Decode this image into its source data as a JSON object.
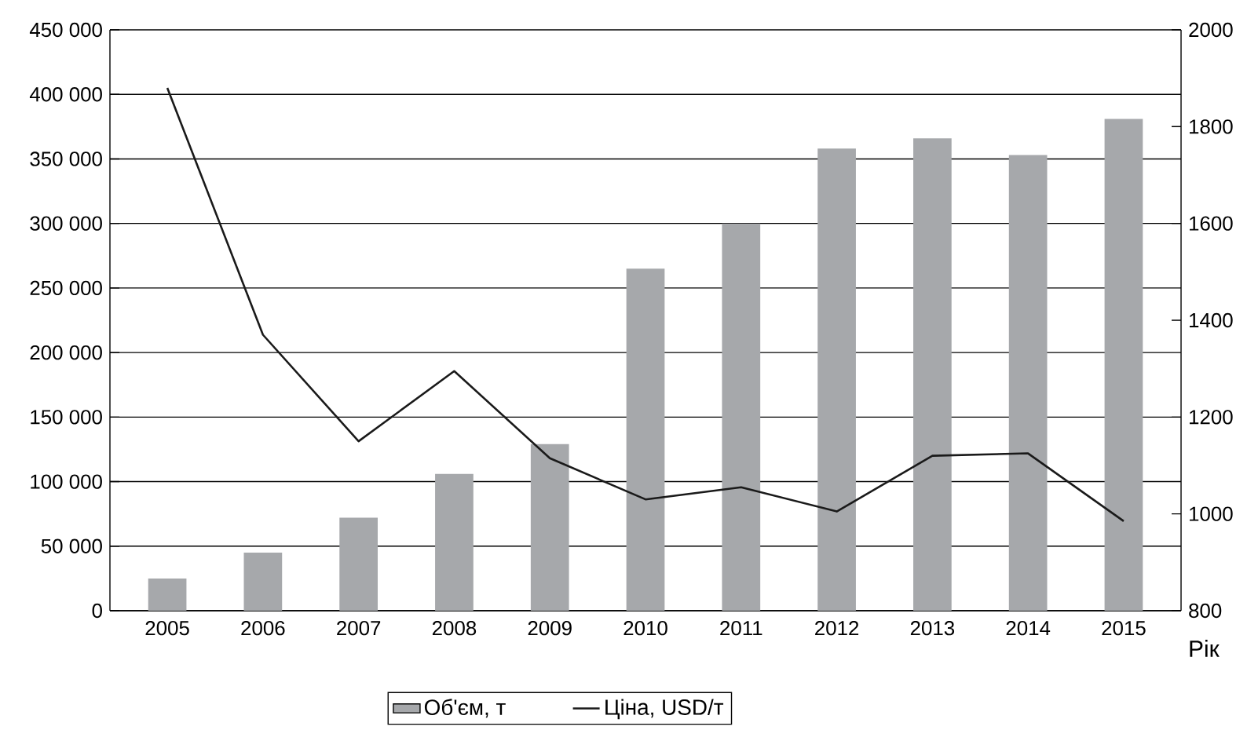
{
  "chart_data": {
    "type": "bar",
    "categories": [
      "2005",
      "2006",
      "2007",
      "2008",
      "2009",
      "2010",
      "2011",
      "2012",
      "2013",
      "2014",
      "2015"
    ],
    "xlabel": "Рік",
    "series": [
      {
        "name": "Об'єм, т",
        "color": "#a6a8ab",
        "values": [
          25000,
          45000,
          72000,
          106000,
          129000,
          265000,
          300000,
          358000,
          366000,
          353000,
          381000
        ]
      },
      {
        "name": "Ціна, USD/т",
        "type": "line",
        "axis": "y2",
        "color": "#1a1a1a",
        "values": [
          1880,
          1370,
          1150,
          1295,
          1115,
          1030,
          1055,
          1005,
          1120,
          1125,
          985
        ]
      }
    ],
    "ylim": [
      0,
      450000
    ],
    "yticks": [
      0,
      {
        "value": 50000,
        "label": "50 000"
      },
      {
        "value": 100000,
        "label": "100 000"
      },
      {
        "value": 150000,
        "label": "150 000"
      },
      {
        "value": 200000,
        "label": "200 000"
      },
      {
        "value": 250000,
        "label": "250 000"
      },
      {
        "value": 300000,
        "label": "300 000"
      },
      {
        "value": 350000,
        "label": "350 000"
      },
      {
        "value": 400000,
        "label": "400 000"
      },
      {
        "value": 450000,
        "label": "450 000"
      }
    ],
    "y2lim": [
      800,
      2000
    ],
    "y2ticks": [
      800,
      1000,
      1200,
      1400,
      1600,
      1800,
      2000
    ],
    "grid": "y",
    "legend": "bottom"
  }
}
